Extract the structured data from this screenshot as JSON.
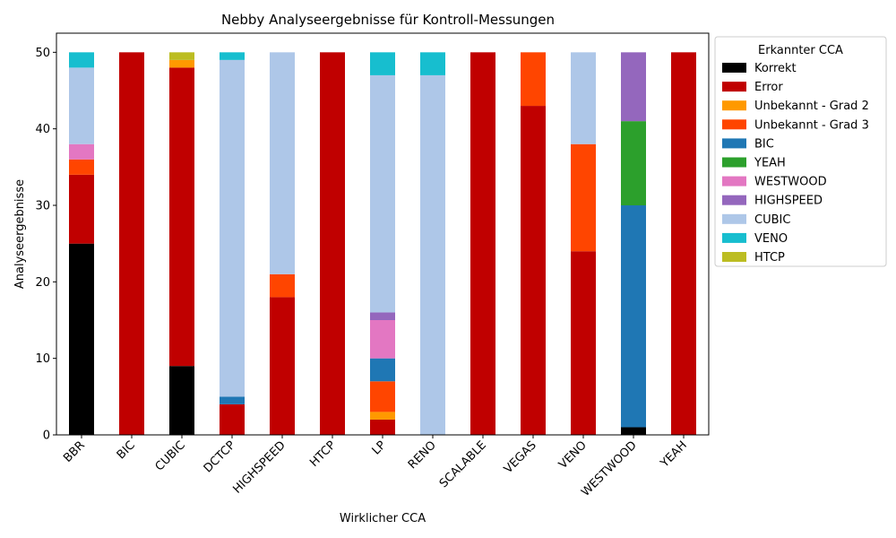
{
  "chart_data": {
    "type": "bar",
    "stacked": true,
    "title": "Nebby Analyseergebnisse für Kontroll-Messungen",
    "xlabel": "Wirklicher CCA",
    "ylabel": "Analyseergebnisse",
    "ylim": [
      0,
      52.5
    ],
    "yticks": [
      0,
      10,
      20,
      30,
      40,
      50
    ],
    "grid": false,
    "legend_title": "Erkannter CCA",
    "legend_position": "outside-top-right",
    "categories": [
      "BBR",
      "BIC",
      "CUBIC",
      "DCTCP",
      "HIGHSPEED",
      "HTCP",
      "LP",
      "RENO",
      "SCALABLE",
      "VEGAS",
      "VENO",
      "WESTWOOD",
      "YEAH"
    ],
    "series": [
      {
        "name": "Korrekt",
        "color": "#000000",
        "values": [
          25,
          0,
          9,
          0,
          0,
          0,
          0,
          0,
          0,
          0,
          0,
          1,
          0
        ]
      },
      {
        "name": "Error",
        "color": "#c00000",
        "values": [
          9,
          50,
          39,
          4,
          18,
          50,
          2,
          0,
          50,
          43,
          24,
          0,
          50
        ]
      },
      {
        "name": "Unbekannt - Grad 2",
        "color": "#ff9900",
        "values": [
          0,
          0,
          1,
          0,
          0,
          0,
          1,
          0,
          0,
          0,
          0,
          0,
          0
        ]
      },
      {
        "name": "Unbekannt - Grad 3",
        "color": "#ff4500",
        "values": [
          2,
          0,
          0,
          0,
          3,
          0,
          4,
          0,
          0,
          7,
          14,
          0,
          0
        ]
      },
      {
        "name": "BIC",
        "color": "#1f77b4",
        "values": [
          0,
          0,
          0,
          1,
          0,
          0,
          3,
          0,
          0,
          0,
          0,
          29,
          0
        ]
      },
      {
        "name": "YEAH",
        "color": "#2ca02c",
        "values": [
          0,
          0,
          0,
          0,
          0,
          0,
          0,
          0,
          0,
          0,
          0,
          11,
          0
        ]
      },
      {
        "name": "WESTWOOD",
        "color": "#e377c2",
        "values": [
          2,
          0,
          0,
          0,
          0,
          0,
          5,
          0,
          0,
          0,
          0,
          0,
          0
        ]
      },
      {
        "name": "HIGHSPEED",
        "color": "#9467bd",
        "values": [
          0,
          0,
          0,
          0,
          0,
          0,
          1,
          0,
          0,
          0,
          0,
          9,
          0
        ]
      },
      {
        "name": "CUBIC",
        "color": "#aec7e8",
        "values": [
          10,
          0,
          0,
          44,
          29,
          0,
          31,
          47,
          0,
          0,
          12,
          0,
          0
        ]
      },
      {
        "name": "VENO",
        "color": "#17becf",
        "values": [
          2,
          0,
          0,
          1,
          0,
          0,
          3,
          3,
          0,
          0,
          0,
          0,
          0
        ]
      },
      {
        "name": "HTCP",
        "color": "#bcbd22",
        "values": [
          0,
          0,
          1,
          0,
          0,
          0,
          0,
          0,
          0,
          0,
          0,
          0,
          0
        ]
      }
    ]
  }
}
